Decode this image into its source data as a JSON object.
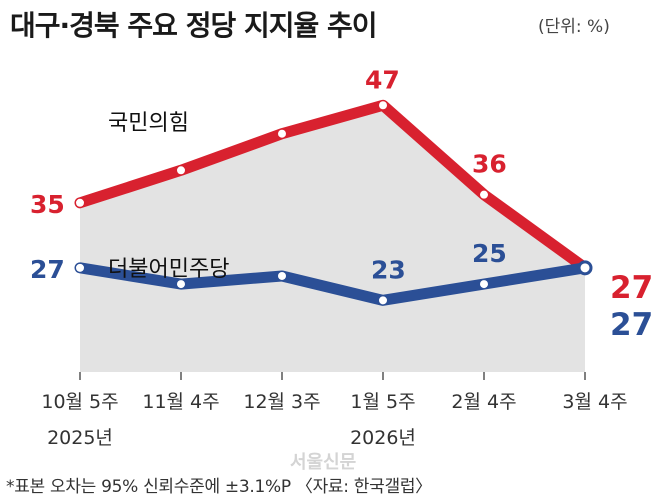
{
  "header": {
    "title": "대구·경북 주요 정당 지지율 추이",
    "unit": "(단위: %)"
  },
  "footer": {
    "note": "*표본 오차는 95% 신뢰수준에 ±3.1%P 〈자료: 한국갤럽〉",
    "watermark": "서울신문"
  },
  "colors": {
    "red": "#d8212f",
    "blue": "#2b4f96",
    "area": "#e3e3e3"
  },
  "chart_data": {
    "type": "line",
    "categories": [
      [
        "10월 5주",
        "2025년"
      ],
      [
        "11월 4주",
        ""
      ],
      [
        "12월 3주",
        ""
      ],
      [
        "1월 5주",
        "2026년"
      ],
      [
        "2월 4주",
        ""
      ],
      [
        "3월 4주",
        ""
      ]
    ],
    "series": [
      {
        "name": "국민의힘",
        "color": "#d8212f",
        "values": [
          35,
          39,
          43.5,
          47,
          36,
          27
        ],
        "labels": [
          "35",
          "",
          "",
          "47",
          "36",
          "27"
        ]
      },
      {
        "name": "더불어민주당",
        "color": "#2b4f96",
        "values": [
          27,
          25,
          26,
          23,
          25,
          27
        ],
        "labels": [
          "27",
          "",
          "",
          "23",
          "25",
          "27"
        ]
      }
    ],
    "ylim": [
      18,
      49
    ],
    "grid": false
  }
}
